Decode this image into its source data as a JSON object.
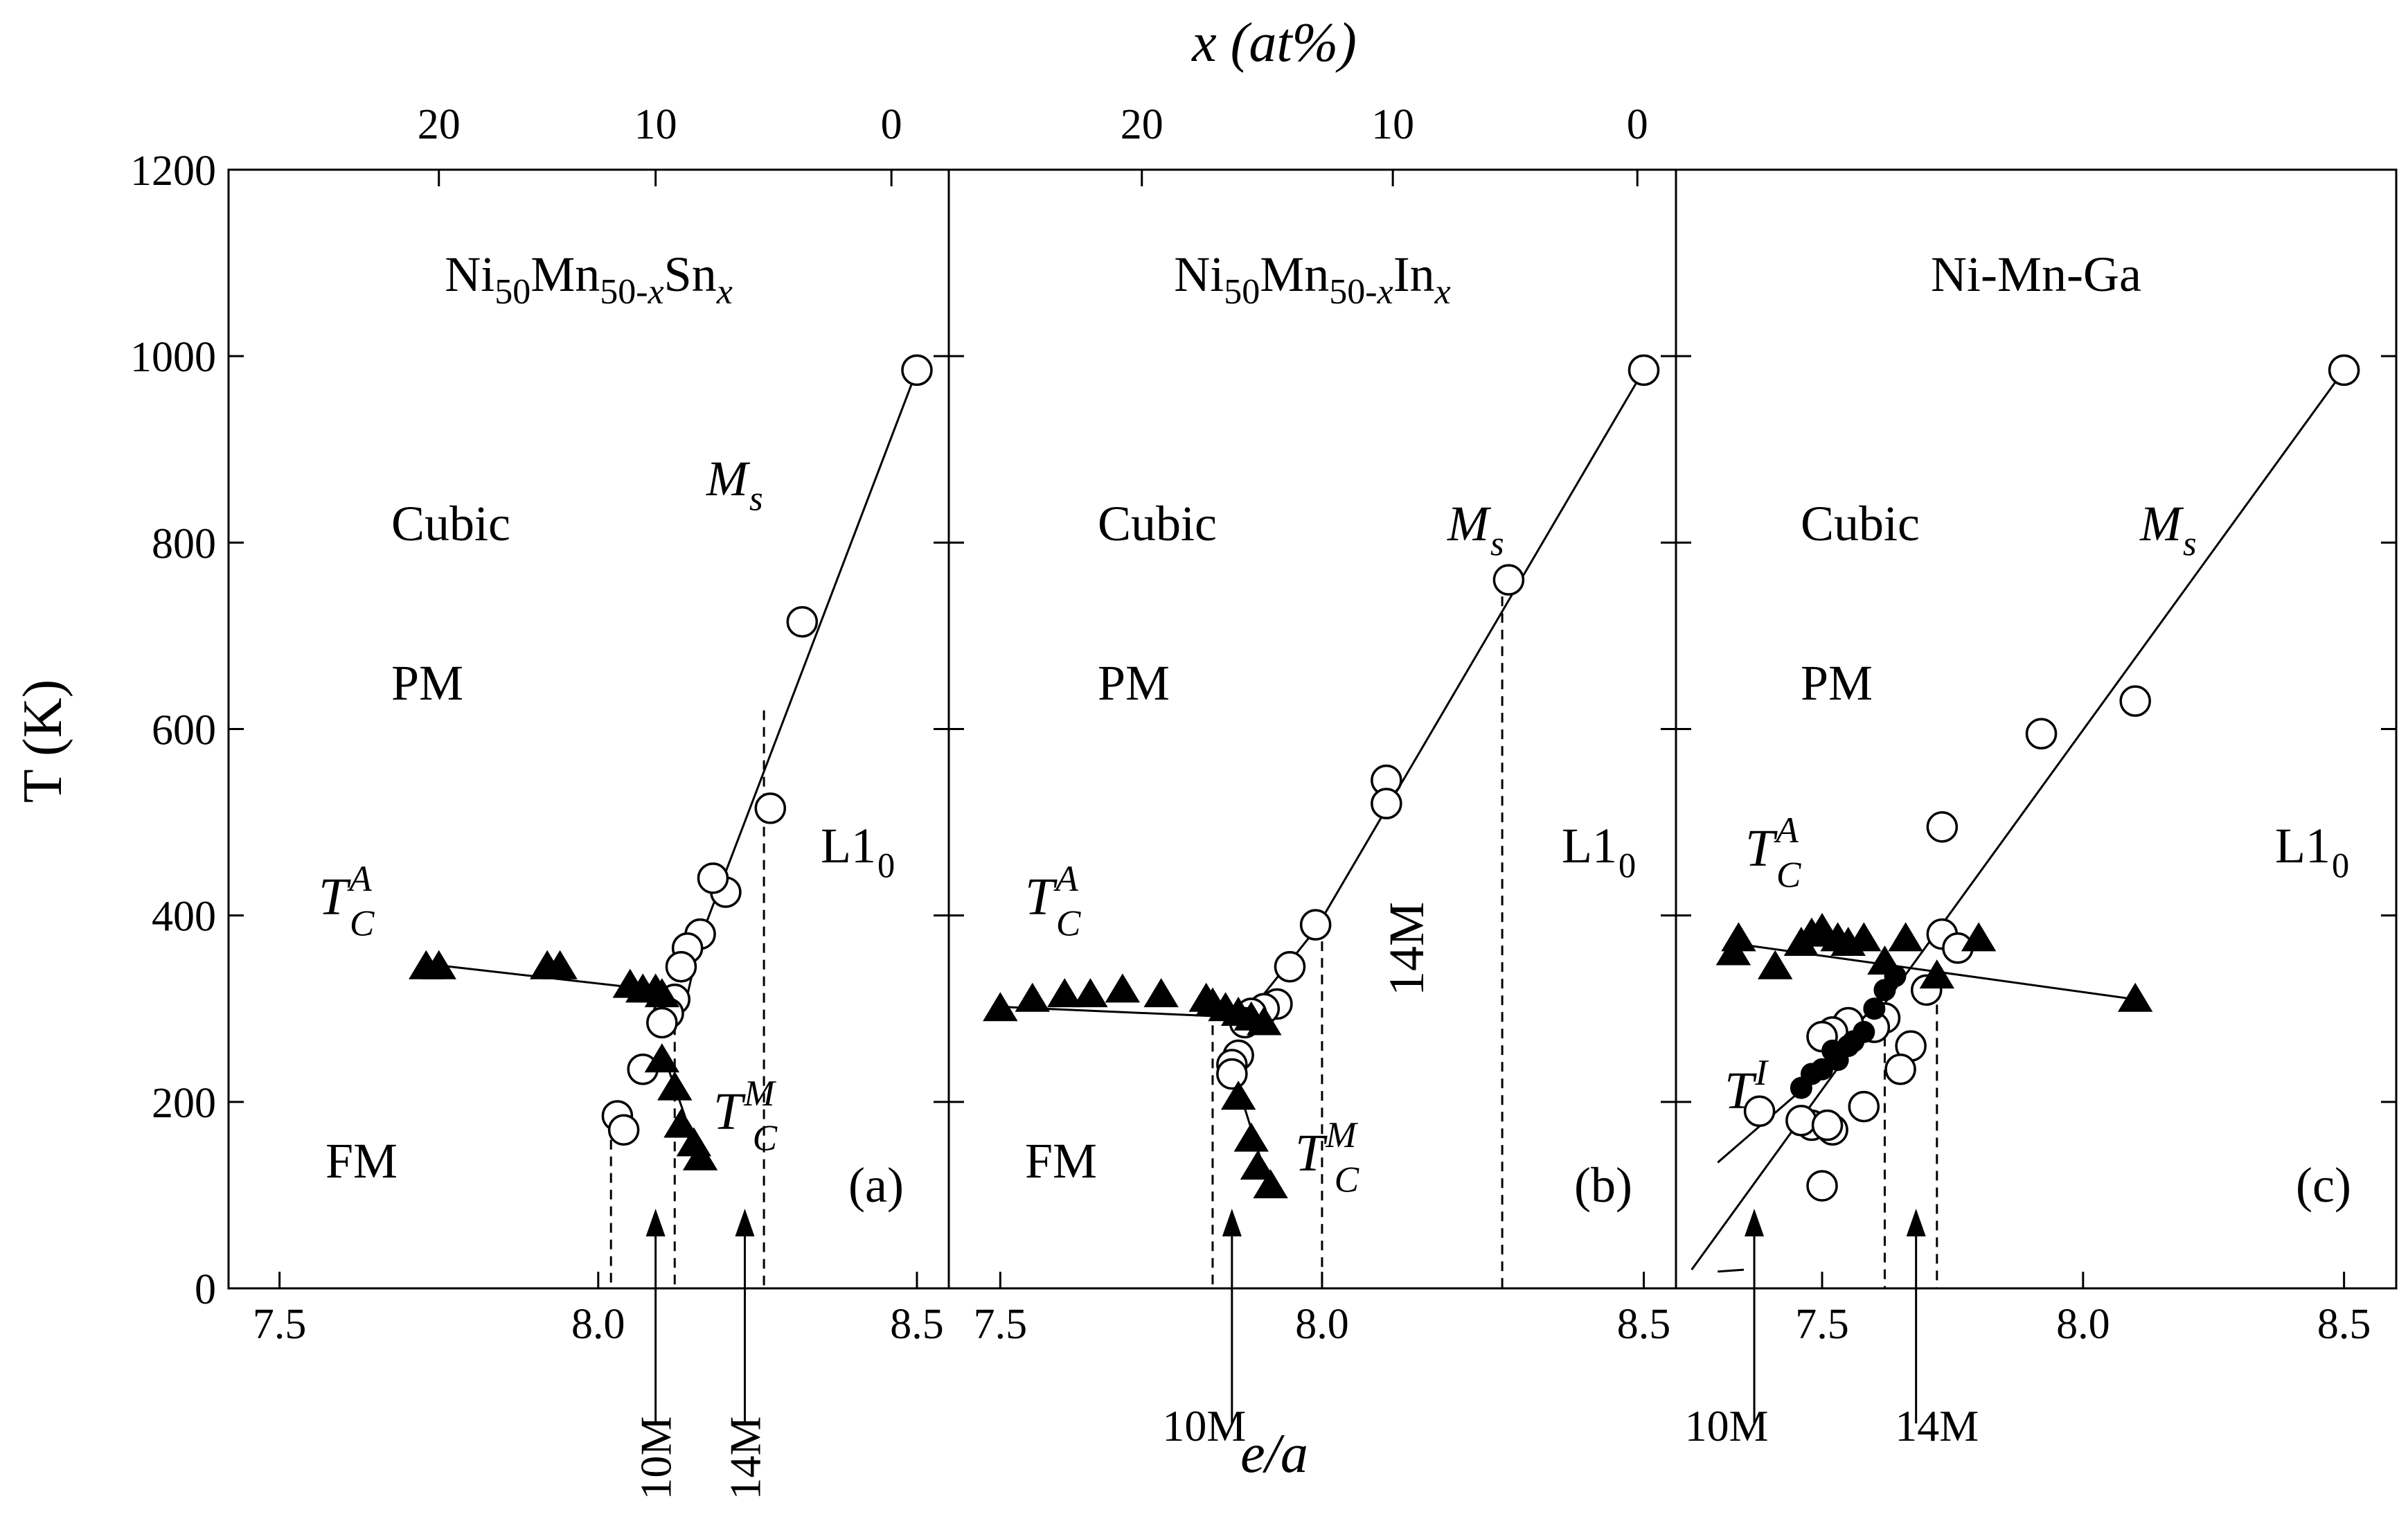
{
  "figure": {
    "top_axis_label": "x (at%)",
    "bottom_axis_label": "e/a",
    "y_axis_label": "T (K)"
  },
  "chart_data": [
    {
      "type": "scatter",
      "panel": "(a)",
      "title": "Ni50Mn50-xSnx",
      "xlabel": "e/a",
      "ylabel": "T (K)",
      "xlim": [
        7.42,
        8.55
      ],
      "ylim": [
        0,
        1200
      ],
      "xticks": [
        7.5,
        8.0,
        8.5
      ],
      "yticks": [
        0,
        200,
        400,
        600,
        800,
        1000,
        1200
      ],
      "top_ticks": [
        {
          "label": "20",
          "ea": 7.75
        },
        {
          "label": "10",
          "ea": 8.09
        },
        {
          "label": "0",
          "ea": 8.46
        }
      ],
      "region_labels": {
        "cubic": "Cubic",
        "pm": "PM",
        "fm": "FM",
        "l10": "L1",
        "l10_sub": "0",
        "ms": "M",
        "ms_sub": "s",
        "tca": "T",
        "tca_sub": "C",
        "tca_sup": "A",
        "tcm": "T",
        "tcm_sub": "C",
        "tcm_sup": "M"
      },
      "series": [
        {
          "name": "Ms (open circles)",
          "x": [
            8.5,
            8.32,
            8.27,
            8.2,
            8.18,
            8.16,
            8.14,
            8.13,
            8.12,
            8.11,
            8.1,
            8.07,
            8.03,
            8.04
          ],
          "y": [
            985,
            715,
            515,
            425,
            440,
            380,
            365,
            345,
            310,
            295,
            285,
            235,
            185,
            170
          ]
        },
        {
          "name": "TC^A (filled triangles)",
          "x": [
            7.73,
            7.75,
            7.92,
            7.94,
            8.05,
            8.07,
            8.09,
            8.1
          ],
          "y": [
            345,
            345,
            345,
            345,
            325,
            320,
            320,
            315
          ]
        },
        {
          "name": "TC^M (filled triangles)",
          "x": [
            8.1,
            8.12,
            8.13,
            8.15,
            8.16
          ],
          "y": [
            245,
            215,
            175,
            155,
            140
          ]
        }
      ],
      "lines": [
        {
          "x": [
            8.5,
            8.16
          ],
          "y": [
            985,
            375
          ]
        },
        {
          "x": [
            7.73,
            8.09
          ],
          "y": [
            348,
            320
          ]
        },
        {
          "x": [
            8.09,
            8.14
          ],
          "y": [
            320,
            315
          ]
        },
        {
          "x": [
            8.16,
            8.14
          ],
          "y": [
            375,
            315
          ]
        },
        {
          "x": [
            8.1,
            8.16
          ],
          "y": [
            255,
            138
          ]
        }
      ],
      "dashed": [
        {
          "x": 8.02,
          "y": 195
        },
        {
          "x": 8.12,
          "y": 300
        },
        {
          "x": 8.26,
          "y": 620
        }
      ],
      "arrows": [
        {
          "ea": 8.09,
          "label": "10M"
        },
        {
          "ea": 8.23,
          "label": "14M"
        }
      ]
    },
    {
      "type": "scatter",
      "panel": "(b)",
      "title": "Ni50Mn50-xInx",
      "xlabel": "e/a",
      "ylabel": "T (K)",
      "xlim": [
        7.42,
        8.55
      ],
      "ylim": [
        0,
        1200
      ],
      "xticks": [
        7.5,
        8.0,
        8.5
      ],
      "top_ticks": [
        {
          "label": "20",
          "ea": 7.72
        },
        {
          "label": "10",
          "ea": 8.11
        },
        {
          "label": "0",
          "ea": 8.49
        }
      ],
      "region_labels": {
        "cubic": "Cubic",
        "pm": "PM",
        "fm": "FM",
        "l10": "L1",
        "l10_sub": "0",
        "ms": "M",
        "ms_sub": "s",
        "tca": "T",
        "tca_sub": "C",
        "tca_sup": "A",
        "tcm": "T",
        "tcm_sub": "C",
        "tcm_sup": "M",
        "label_14m": "14M"
      },
      "series": [
        {
          "name": "Ms (open circles)",
          "x": [
            8.5,
            8.29,
            8.1,
            8.1,
            7.99,
            7.95,
            7.93,
            7.91,
            7.89,
            7.88,
            7.87,
            7.86,
            7.86
          ],
          "y": [
            985,
            760,
            545,
            520,
            390,
            345,
            305,
            300,
            295,
            285,
            250,
            240,
            230
          ]
        },
        {
          "name": "TC^A (filled triangles)",
          "x": [
            7.5,
            7.55,
            7.6,
            7.64,
            7.69,
            7.75,
            7.82,
            7.83,
            7.85,
            7.87,
            7.89,
            7.91
          ],
          "y": [
            300,
            310,
            315,
            315,
            320,
            315,
            310,
            305,
            300,
            295,
            290,
            285
          ]
        },
        {
          "name": "TC^M (filled triangles)",
          "x": [
            7.87,
            7.89,
            7.9,
            7.92
          ],
          "y": [
            205,
            160,
            130,
            110
          ]
        }
      ],
      "lines": [
        {
          "x": [
            8.5,
            7.99
          ],
          "y": [
            985,
            385
          ]
        },
        {
          "x": [
            7.99,
            7.88
          ],
          "y": [
            385,
            290
          ]
        },
        {
          "x": [
            7.5,
            7.9
          ],
          "y": [
            302,
            290
          ]
        },
        {
          "x": [
            7.87,
            7.92
          ],
          "y": [
            215,
            105
          ]
        }
      ],
      "dashed": [
        {
          "x": 7.83,
          "y": 300
        },
        {
          "x": 8.0,
          "y": 390
        },
        {
          "x": 8.28,
          "y": 760
        }
      ],
      "arrows": [
        {
          "ea": 7.86,
          "label": "10M"
        }
      ]
    },
    {
      "type": "scatter",
      "panel": "(c)",
      "title": "Ni-Mn-Ga",
      "xlabel": "e/a",
      "ylabel": "T (K)",
      "xlim": [
        7.22,
        8.6
      ],
      "ylim": [
        0,
        1200
      ],
      "xticks": [
        7.5,
        8.0,
        8.5
      ],
      "top_ticks": [],
      "region_labels": {
        "cubic": "Cubic",
        "pm": "PM",
        "l10": "L1",
        "l10_sub": "0",
        "ms": "M",
        "ms_sub": "s",
        "tca": "T",
        "tca_sub": "C",
        "tca_sup": "A",
        "ti": "T",
        "ti_sup": "I"
      },
      "series": [
        {
          "name": "Ms (open circles)",
          "x": [
            8.5,
            8.1,
            7.92,
            7.73,
            7.73,
            7.76,
            7.7,
            7.67,
            7.65,
            7.62,
            7.6,
            7.58,
            7.55,
            7.52,
            7.5,
            7.48,
            7.46,
            7.5,
            7.52,
            7.51,
            7.38
          ],
          "y": [
            985,
            630,
            595,
            495,
            380,
            365,
            320,
            260,
            235,
            290,
            280,
            195,
            285,
            275,
            270,
            175,
            180,
            110,
            170,
            175,
            190
          ]
        },
        {
          "name": "TC^A (filled triangles)",
          "x": [
            7.34,
            7.33,
            7.41,
            7.46,
            7.48,
            7.5,
            7.53,
            7.55,
            7.58,
            7.62,
            7.66,
            7.72,
            7.8,
            8.1
          ],
          "y": [
            375,
            360,
            345,
            370,
            380,
            385,
            375,
            370,
            375,
            350,
            375,
            335,
            375,
            310
          ]
        },
        {
          "name": "T^I (filled circles)",
          "x": [
            7.46,
            7.48,
            7.5,
            7.52,
            7.53,
            7.55,
            7.56,
            7.58,
            7.6,
            7.62,
            7.64
          ],
          "y": [
            215,
            230,
            235,
            255,
            245,
            260,
            265,
            275,
            300,
            320,
            335
          ]
        }
      ],
      "lines": [
        {
          "x": [
            8.5,
            7.25
          ],
          "y": [
            985,
            20
          ]
        },
        {
          "x": [
            7.33,
            8.1
          ],
          "y": [
            370,
            310
          ]
        },
        {
          "x": [
            7.3,
            7.62
          ],
          "y": [
            135,
            290
          ]
        },
        {
          "x": [
            7.3,
            7.35
          ],
          "y": [
            18,
            20
          ]
        }
      ],
      "dashed": [
        {
          "x": 7.62,
          "y": 270
        },
        {
          "x": 7.72,
          "y": 340
        }
      ],
      "arrows": [
        {
          "ea": 7.37,
          "label": "10M"
        },
        {
          "ea": 7.68,
          "label": "14M"
        }
      ]
    }
  ]
}
